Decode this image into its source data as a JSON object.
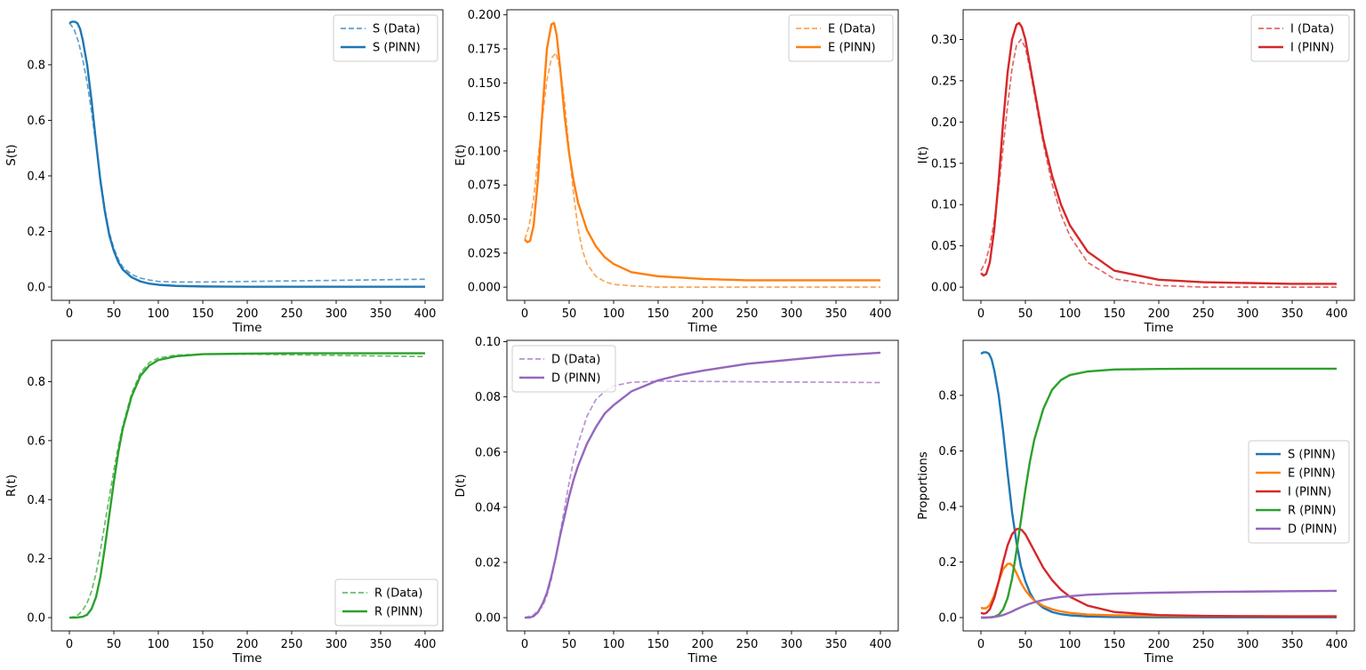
{
  "chart_data": [
    {
      "type": "line",
      "xlabel": "Time",
      "ylabel": "S(t)",
      "xlim": [
        -20,
        420
      ],
      "ylim": [
        -0.048,
        0.998
      ],
      "xticks": [
        0,
        50,
        100,
        150,
        200,
        250,
        300,
        350,
        400
      ],
      "yticks": [
        0.0,
        0.2,
        0.4,
        0.6,
        0.8
      ],
      "ytick_labels": [
        "0.0",
        "0.2",
        "0.4",
        "0.6",
        "0.8"
      ],
      "legend_position": "top-right",
      "series": [
        {
          "name": "S (Data)",
          "style": "dashed",
          "color": "#1f77b4",
          "alpha": 0.7,
          "x": [
            0,
            5,
            10,
            15,
            20,
            25,
            30,
            35,
            40,
            45,
            50,
            55,
            60,
            70,
            80,
            90,
            100,
            120,
            150,
            200,
            250,
            300,
            350,
            400
          ],
          "y": [
            0.95,
            0.93,
            0.885,
            0.82,
            0.735,
            0.63,
            0.51,
            0.39,
            0.28,
            0.195,
            0.14,
            0.1,
            0.072,
            0.045,
            0.032,
            0.025,
            0.02,
            0.018,
            0.018,
            0.02,
            0.022,
            0.024,
            0.026,
            0.028
          ]
        },
        {
          "name": "S (PINN)",
          "style": "solid",
          "color": "#1f77b4",
          "alpha": 1,
          "x": [
            0,
            3,
            6,
            9,
            12,
            15,
            20,
            25,
            30,
            35,
            40,
            45,
            50,
            55,
            60,
            70,
            80,
            90,
            100,
            120,
            150,
            200,
            250,
            300,
            350,
            400
          ],
          "y": [
            0.95,
            0.955,
            0.955,
            0.95,
            0.93,
            0.89,
            0.8,
            0.67,
            0.52,
            0.38,
            0.27,
            0.185,
            0.13,
            0.09,
            0.063,
            0.035,
            0.02,
            0.012,
            0.008,
            0.004,
            0.002,
            0.001,
            0.001,
            0.001,
            0.001,
            0.001
          ]
        }
      ]
    },
    {
      "type": "line",
      "xlabel": "Time",
      "ylabel": "E(t)",
      "xlim": [
        -20,
        420
      ],
      "ylim": [
        -0.0097,
        0.2037
      ],
      "xticks": [
        0,
        50,
        100,
        150,
        200,
        250,
        300,
        350,
        400
      ],
      "yticks": [
        0.0,
        0.025,
        0.05,
        0.075,
        0.1,
        0.125,
        0.15,
        0.175,
        0.2
      ],
      "ytick_labels": [
        "0.000",
        "0.025",
        "0.050",
        "0.075",
        "0.100",
        "0.125",
        "0.150",
        "0.175",
        "0.200"
      ],
      "legend_position": "top-right",
      "series": [
        {
          "name": "E (Data)",
          "style": "dashed",
          "color": "#ff7f0e",
          "alpha": 0.7,
          "x": [
            0,
            5,
            10,
            15,
            20,
            25,
            30,
            35,
            40,
            45,
            50,
            55,
            60,
            65,
            70,
            80,
            90,
            100,
            120,
            150,
            200,
            250,
            300,
            350,
            400
          ],
          "y": [
            0.035,
            0.045,
            0.065,
            0.095,
            0.125,
            0.152,
            0.168,
            0.172,
            0.16,
            0.135,
            0.1,
            0.068,
            0.043,
            0.027,
            0.017,
            0.008,
            0.004,
            0.002,
            0.001,
            0.0,
            0.0,
            0.0,
            0.0,
            0.0,
            0.0
          ]
        },
        {
          "name": "E (PINN)",
          "style": "solid",
          "color": "#ff7f0e",
          "alpha": 1,
          "x": [
            0,
            3,
            6,
            10,
            15,
            20,
            25,
            30,
            33,
            36,
            40,
            45,
            50,
            55,
            60,
            70,
            80,
            90,
            100,
            120,
            150,
            200,
            250,
            300,
            350,
            400
          ],
          "y": [
            0.035,
            0.033,
            0.034,
            0.045,
            0.08,
            0.13,
            0.175,
            0.193,
            0.194,
            0.185,
            0.16,
            0.125,
            0.098,
            0.078,
            0.062,
            0.042,
            0.03,
            0.022,
            0.017,
            0.011,
            0.008,
            0.006,
            0.005,
            0.005,
            0.005,
            0.005
          ]
        }
      ]
    },
    {
      "type": "line",
      "xlabel": "Time",
      "ylabel": "I(t)",
      "xlim": [
        -20,
        420
      ],
      "ylim": [
        -0.016,
        0.336
      ],
      "xticks": [
        0,
        50,
        100,
        150,
        200,
        250,
        300,
        350,
        400
      ],
      "yticks": [
        0.0,
        0.05,
        0.1,
        0.15,
        0.2,
        0.25,
        0.3
      ],
      "ytick_labels": [
        "0.00",
        "0.05",
        "0.10",
        "0.15",
        "0.20",
        "0.25",
        "0.30"
      ],
      "legend_position": "top-right",
      "series": [
        {
          "name": "I (Data)",
          "style": "dashed",
          "color": "#d62728",
          "alpha": 0.7,
          "x": [
            0,
            5,
            10,
            15,
            20,
            25,
            30,
            35,
            40,
            45,
            50,
            55,
            60,
            70,
            80,
            90,
            100,
            120,
            150,
            200,
            250,
            300,
            350,
            400
          ],
          "y": [
            0.02,
            0.03,
            0.05,
            0.08,
            0.12,
            0.17,
            0.22,
            0.265,
            0.293,
            0.3,
            0.29,
            0.265,
            0.235,
            0.175,
            0.125,
            0.088,
            0.062,
            0.03,
            0.01,
            0.002,
            0.0,
            0.0,
            0.0,
            0.0
          ]
        },
        {
          "name": "I (PINN)",
          "style": "solid",
          "color": "#d62728",
          "alpha": 1,
          "x": [
            0,
            3,
            6,
            10,
            15,
            20,
            25,
            30,
            35,
            40,
            43,
            46,
            50,
            55,
            60,
            70,
            80,
            90,
            100,
            120,
            150,
            200,
            250,
            300,
            350,
            400
          ],
          "y": [
            0.017,
            0.014,
            0.016,
            0.03,
            0.07,
            0.13,
            0.2,
            0.26,
            0.3,
            0.318,
            0.32,
            0.315,
            0.3,
            0.27,
            0.24,
            0.18,
            0.135,
            0.1,
            0.075,
            0.043,
            0.02,
            0.009,
            0.006,
            0.005,
            0.004,
            0.004
          ]
        }
      ]
    },
    {
      "type": "line",
      "xlabel": "Time",
      "ylabel": "R(t)",
      "xlim": [
        -20,
        420
      ],
      "ylim": [
        -0.045,
        0.94
      ],
      "xticks": [
        0,
        50,
        100,
        150,
        200,
        250,
        300,
        350,
        400
      ],
      "yticks": [
        0.0,
        0.2,
        0.4,
        0.6,
        0.8
      ],
      "ytick_labels": [
        "0.0",
        "0.2",
        "0.4",
        "0.6",
        "0.8"
      ],
      "legend_position": "bottom-right",
      "series": [
        {
          "name": "R (Data)",
          "style": "dashed",
          "color": "#2ca02c",
          "alpha": 0.7,
          "x": [
            0,
            5,
            10,
            15,
            20,
            25,
            30,
            35,
            40,
            45,
            50,
            55,
            60,
            70,
            80,
            90,
            100,
            120,
            150,
            200,
            250,
            300,
            350,
            400
          ],
          "y": [
            0.0,
            0.003,
            0.01,
            0.025,
            0.05,
            0.09,
            0.15,
            0.23,
            0.32,
            0.41,
            0.5,
            0.58,
            0.65,
            0.76,
            0.83,
            0.865,
            0.88,
            0.89,
            0.893,
            0.893,
            0.891,
            0.889,
            0.887,
            0.885
          ]
        },
        {
          "name": "R (PINN)",
          "style": "solid",
          "color": "#2ca02c",
          "alpha": 1,
          "x": [
            0,
            5,
            10,
            15,
            20,
            25,
            30,
            35,
            40,
            45,
            50,
            55,
            60,
            70,
            80,
            90,
            100,
            120,
            150,
            200,
            250,
            300,
            350,
            400
          ],
          "y": [
            0.0,
            0.0,
            0.001,
            0.003,
            0.01,
            0.03,
            0.07,
            0.14,
            0.24,
            0.35,
            0.46,
            0.56,
            0.64,
            0.75,
            0.82,
            0.855,
            0.873,
            0.886,
            0.893,
            0.895,
            0.896,
            0.896,
            0.896,
            0.896
          ]
        }
      ]
    },
    {
      "type": "line",
      "xlabel": "Time",
      "ylabel": "D(t)",
      "xlim": [
        -20,
        420
      ],
      "ylim": [
        -0.0048,
        0.1005
      ],
      "xticks": [
        0,
        50,
        100,
        150,
        200,
        250,
        300,
        350,
        400
      ],
      "yticks": [
        0.0,
        0.02,
        0.04,
        0.06,
        0.08,
        0.1
      ],
      "ytick_labels": [
        "0.00",
        "0.02",
        "0.04",
        "0.06",
        "0.08",
        "0.10"
      ],
      "legend_position": "top-left",
      "series": [
        {
          "name": "D (Data)",
          "style": "dashed",
          "color": "#9467bd",
          "alpha": 0.7,
          "x": [
            0,
            10,
            20,
            25,
            30,
            35,
            40,
            45,
            50,
            55,
            60,
            70,
            80,
            90,
            100,
            120,
            150,
            200,
            250,
            300,
            350,
            400
          ],
          "y": [
            0.0,
            0.001,
            0.004,
            0.008,
            0.014,
            0.022,
            0.031,
            0.04,
            0.049,
            0.057,
            0.063,
            0.073,
            0.079,
            0.082,
            0.084,
            0.0853,
            0.0857,
            0.0856,
            0.0855,
            0.0854,
            0.0853,
            0.0852
          ]
        },
        {
          "name": "D (PINN)",
          "style": "solid",
          "color": "#9467bd",
          "alpha": 1,
          "x": [
            0,
            5,
            10,
            15,
            20,
            25,
            30,
            35,
            40,
            45,
            50,
            55,
            60,
            70,
            80,
            90,
            100,
            120,
            150,
            175,
            200,
            250,
            300,
            350,
            400
          ],
          "y": [
            0.0,
            0.0,
            0.0005,
            0.002,
            0.005,
            0.009,
            0.015,
            0.022,
            0.03,
            0.037,
            0.044,
            0.05,
            0.055,
            0.063,
            0.069,
            0.074,
            0.077,
            0.082,
            0.086,
            0.088,
            0.0895,
            0.092,
            0.0935,
            0.095,
            0.096
          ]
        }
      ]
    },
    {
      "type": "line",
      "xlabel": "Time",
      "ylabel": "Proportions",
      "xlim": [
        -20,
        420
      ],
      "ylim": [
        -0.048,
        0.998
      ],
      "xticks": [
        0,
        50,
        100,
        150,
        200,
        250,
        300,
        350,
        400
      ],
      "yticks": [
        0.0,
        0.2,
        0.4,
        0.6,
        0.8
      ],
      "ytick_labels": [
        "0.0",
        "0.2",
        "0.4",
        "0.6",
        "0.8"
      ],
      "legend_position": "center-right",
      "series": [
        {
          "name": "S (PINN)",
          "style": "solid",
          "color": "#1f77b4",
          "alpha": 1,
          "ref": "0.1"
        },
        {
          "name": "E (PINN)",
          "style": "solid",
          "color": "#ff7f0e",
          "alpha": 1,
          "ref": "1.1"
        },
        {
          "name": "I (PINN)",
          "style": "solid",
          "color": "#d62728",
          "alpha": 1,
          "ref": "2.1"
        },
        {
          "name": "R (PINN)",
          "style": "solid",
          "color": "#2ca02c",
          "alpha": 1,
          "ref": "3.1"
        },
        {
          "name": "D (PINN)",
          "style": "solid",
          "color": "#9467bd",
          "alpha": 1,
          "ref": "4.1"
        }
      ]
    }
  ]
}
